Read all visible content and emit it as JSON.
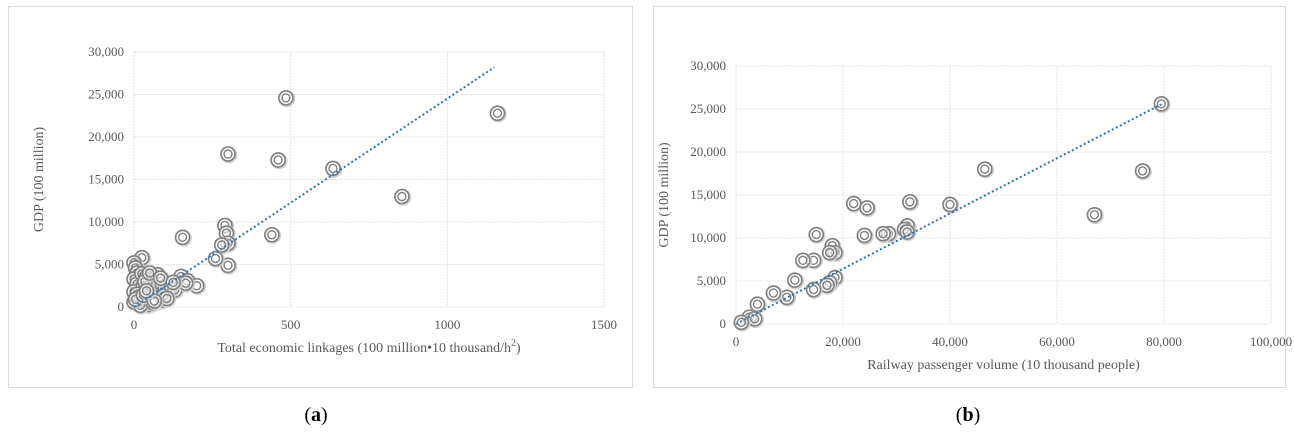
{
  "captions": [
    {
      "open": "(",
      "letter": "a",
      "close": ")"
    },
    {
      "open": "(",
      "letter": "b",
      "close": ")"
    }
  ],
  "chart_data": [
    {
      "type": "scatter",
      "title": "",
      "xlabel": "Total economic linkages (100 million•10 thousand/h",
      "xlabel_sup": "2",
      "xlabel_close": ")",
      "ylabel": "GDP (100 million)",
      "xlim": [
        0,
        1500
      ],
      "ylim": [
        0,
        30000
      ],
      "xticks": [
        0,
        500,
        1000,
        1500
      ],
      "xtick_labels": [
        "0",
        "500",
        "1000",
        "1500"
      ],
      "yticks": [
        0,
        5000,
        10000,
        15000,
        20000,
        25000,
        30000
      ],
      "ytick_labels": [
        "0",
        "5,000",
        "10,000",
        "15,000",
        "20,000",
        "25,000",
        "30,000"
      ],
      "grid": true,
      "marker_color": "#7f7f7f",
      "trend_color": "#2e75b6",
      "trendline": {
        "x": [
          0,
          1150
        ],
        "y": [
          0,
          28200
        ]
      },
      "series": [
        {
          "points": [
            [
              485,
              24600
            ],
            [
              1160,
              22800
            ],
            [
              300,
              18000
            ],
            [
              460,
              17300
            ],
            [
              635,
              16300
            ],
            [
              855,
              13000
            ],
            [
              290,
              9600
            ],
            [
              295,
              8700
            ],
            [
              300,
              7500
            ],
            [
              280,
              7300
            ],
            [
              440,
              8500
            ],
            [
              155,
              8200
            ],
            [
              300,
              4900
            ],
            [
              260,
              5700
            ],
            [
              25,
              5800
            ],
            [
              0,
              5200
            ],
            [
              5,
              4600
            ],
            [
              10,
              4000
            ],
            [
              0,
              3300
            ],
            [
              10,
              2700
            ],
            [
              0,
              1800
            ],
            [
              15,
              1200
            ],
            [
              0,
              600
            ],
            [
              25,
              3900
            ],
            [
              40,
              3500
            ],
            [
              50,
              3200
            ],
            [
              60,
              2900
            ],
            [
              30,
              2500
            ],
            [
              45,
              2200
            ],
            [
              55,
              1900
            ],
            [
              65,
              1500
            ],
            [
              75,
              1100
            ],
            [
              85,
              800
            ],
            [
              35,
              600
            ],
            [
              45,
              300
            ],
            [
              20,
              200
            ],
            [
              60,
              500
            ],
            [
              70,
              1800
            ],
            [
              80,
              2300
            ],
            [
              90,
              2700
            ],
            [
              100,
              2200
            ],
            [
              110,
              1700
            ],
            [
              95,
              1300
            ],
            [
              120,
              2400
            ],
            [
              150,
              3600
            ],
            [
              130,
              2000
            ],
            [
              170,
              3100
            ],
            [
              200,
              2500
            ],
            [
              165,
              2800
            ],
            [
              105,
              1000
            ],
            [
              75,
              3800
            ],
            [
              35,
              3000
            ],
            [
              50,
              4000
            ],
            [
              85,
              3400
            ],
            [
              125,
              2900
            ],
            [
              10,
              1500
            ],
            [
              5,
              900
            ],
            [
              30,
              1400
            ],
            [
              65,
              700
            ],
            [
              40,
              1900
            ]
          ]
        }
      ]
    },
    {
      "type": "scatter",
      "title": "",
      "xlabel": "Railway passenger volume (10 thousand people)",
      "ylabel": "GDP (100 million)",
      "xlim": [
        0,
        100000
      ],
      "ylim": [
        0,
        30000
      ],
      "xticks": [
        0,
        20000,
        40000,
        60000,
        80000,
        100000
      ],
      "xtick_labels": [
        "0",
        "20,000",
        "40,000",
        "60,000",
        "80,000",
        "100,000"
      ],
      "yticks": [
        0,
        5000,
        10000,
        15000,
        20000,
        25000,
        30000
      ],
      "ytick_labels": [
        "0",
        "5,000",
        "10,000",
        "15,000",
        "20,000",
        "25,000",
        "30,000"
      ],
      "grid": true,
      "marker_color": "#7f7f7f",
      "trend_color": "#2e75b6",
      "trendline": {
        "x": [
          0,
          80000
        ],
        "y": [
          0,
          25700
        ]
      },
      "series": [
        {
          "points": [
            [
              79500,
              25600
            ],
            [
              46500,
              18000
            ],
            [
              76000,
              17800
            ],
            [
              67000,
              12700
            ],
            [
              32500,
              14200
            ],
            [
              22000,
              14000
            ],
            [
              24500,
              13500
            ],
            [
              40000,
              13900
            ],
            [
              32000,
              11400
            ],
            [
              31500,
              11000
            ],
            [
              32000,
              10700
            ],
            [
              28500,
              10500
            ],
            [
              27500,
              10500
            ],
            [
              24000,
              10300
            ],
            [
              15000,
              10400
            ],
            [
              18000,
              9100
            ],
            [
              18500,
              8300
            ],
            [
              17500,
              8300
            ],
            [
              14500,
              7400
            ],
            [
              12500,
              7400
            ],
            [
              11000,
              5100
            ],
            [
              18500,
              5400
            ],
            [
              17500,
              4800
            ],
            [
              17000,
              4500
            ],
            [
              14500,
              4000
            ],
            [
              9500,
              3100
            ],
            [
              7000,
              3600
            ],
            [
              4000,
              2300
            ],
            [
              2500,
              800
            ],
            [
              3500,
              600
            ],
            [
              1000,
              200
            ]
          ]
        }
      ]
    }
  ]
}
